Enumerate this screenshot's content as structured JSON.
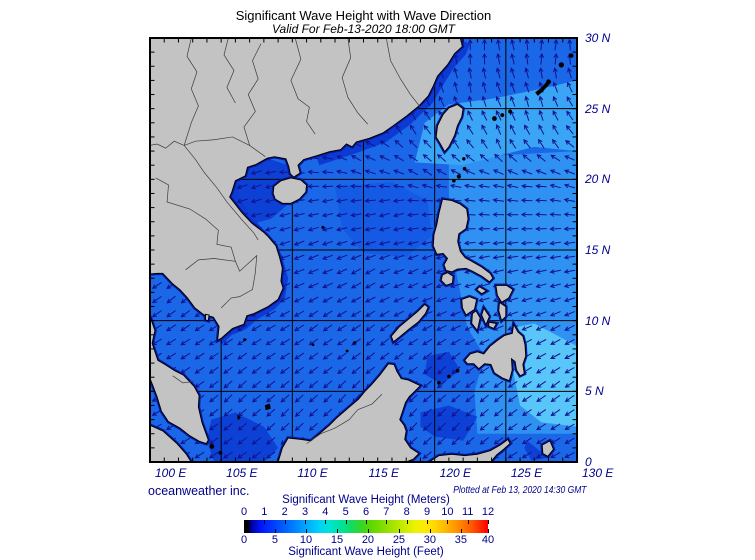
{
  "header": {
    "title": "Significant Wave Height with Wave Direction",
    "subtitle": "Valid For Feb-13-2020 18:00 GMT"
  },
  "footer": {
    "credit": "oceanweather inc.",
    "plotted": "Plotted at Feb 13, 2020 14:30 GMT"
  },
  "axes": {
    "lon_range": [
      100,
      130
    ],
    "lat_range": [
      0,
      30
    ],
    "grid_step_deg": 5,
    "tick_step_deg": 1,
    "lon_labels": [
      {
        "text": "100 E",
        "lon": 100
      },
      {
        "text": "105 E",
        "lon": 105
      },
      {
        "text": "110 E",
        "lon": 110
      },
      {
        "text": "115 E",
        "lon": 115
      },
      {
        "text": "120 E",
        "lon": 120
      },
      {
        "text": "125 E",
        "lon": 125
      },
      {
        "text": "130 E",
        "lon": 130
      }
    ],
    "lat_labels": [
      {
        "text": "30 N",
        "lat": 30
      },
      {
        "text": "25 N",
        "lat": 25
      },
      {
        "text": "20 N",
        "lat": 20
      },
      {
        "text": "15 N",
        "lat": 15
      },
      {
        "text": "10 N",
        "lat": 10
      },
      {
        "text": "5 N",
        "lat": 5
      },
      {
        "text": "0",
        "lat": 0
      }
    ]
  },
  "legend": {
    "title_meters": "Significant Wave Height (Meters)",
    "title_feet": "Significant Wave Height (Feet)",
    "meters_ticks": [
      0,
      1,
      2,
      3,
      4,
      5,
      6,
      7,
      8,
      9,
      10,
      11,
      12
    ],
    "feet_ticks": [
      0,
      5,
      10,
      15,
      20,
      25,
      30,
      35,
      40
    ],
    "gradient_stops": [
      [
        "0%",
        "#000000"
      ],
      [
        "1.5%",
        "#000000"
      ],
      [
        "3%",
        "#0000a0"
      ],
      [
        "7%",
        "#0016ff"
      ],
      [
        "12%",
        "#003cff"
      ],
      [
        "17%",
        "#0064ff"
      ],
      [
        "22%",
        "#008cff"
      ],
      [
        "27%",
        "#00b4ff"
      ],
      [
        "31%",
        "#00d2f8"
      ],
      [
        "35%",
        "#00e4d2"
      ],
      [
        "40%",
        "#00e29b"
      ],
      [
        "44%",
        "#12dc60"
      ],
      [
        "48%",
        "#35d52c"
      ],
      [
        "52%",
        "#5cd800"
      ],
      [
        "57%",
        "#84de00"
      ],
      [
        "62%",
        "#abe600"
      ],
      [
        "66%",
        "#cdec00"
      ],
      [
        "70%",
        "#ecf200"
      ],
      [
        "74%",
        "#fcec00"
      ],
      [
        "78%",
        "#ffd800"
      ],
      [
        "82%",
        "#ffbc00"
      ],
      [
        "86%",
        "#ff9c00"
      ],
      [
        "90%",
        "#ff7800"
      ],
      [
        "94%",
        "#ff5000"
      ],
      [
        "97%",
        "#ff2800"
      ],
      [
        "100%",
        "#ff0000"
      ]
    ]
  },
  "wave_field": {
    "grid_step_deg": 1,
    "arrow_color": "#12128e",
    "points": [
      {
        "lon": 123,
        "lat": 29,
        "dir": 85
      },
      {
        "lon": 128,
        "lat": 29,
        "dir": 78
      },
      {
        "lon": 119,
        "lat": 27.5,
        "dir": 95
      },
      {
        "lon": 122.5,
        "lat": 26,
        "dir": 95
      },
      {
        "lon": 127,
        "lat": 25,
        "dir": 100
      },
      {
        "lon": 118,
        "lat": 24,
        "dir": 115
      },
      {
        "lon": 121,
        "lat": 23,
        "dir": 115
      },
      {
        "lon": 124.5,
        "lat": 23,
        "dir": 108
      },
      {
        "lon": 128,
        "lat": 23,
        "dir": 115
      },
      {
        "lon": 114.5,
        "lat": 21.5,
        "dir": 150
      },
      {
        "lon": 110.5,
        "lat": 20.5,
        "dir": 170
      },
      {
        "lon": 119.5,
        "lat": 21,
        "dir": 140
      },
      {
        "lon": 107.5,
        "lat": 19.5,
        "dir": 200
      },
      {
        "lon": 109.5,
        "lat": 17.5,
        "dir": 195
      },
      {
        "lon": 113,
        "lat": 18,
        "dir": 195
      },
      {
        "lon": 117,
        "lat": 17.5,
        "dir": 200
      },
      {
        "lon": 120.5,
        "lat": 18.5,
        "dir": 185
      },
      {
        "lon": 123.5,
        "lat": 19,
        "dir": 175
      },
      {
        "lon": 127,
        "lat": 19,
        "dir": 180
      },
      {
        "lon": 129.5,
        "lat": 21,
        "dir": 160
      },
      {
        "lon": 111,
        "lat": 15,
        "dir": 205
      },
      {
        "lon": 115,
        "lat": 13,
        "dir": 212
      },
      {
        "lon": 119,
        "lat": 13.5,
        "dir": 207
      },
      {
        "lon": 123.5,
        "lat": 13,
        "dir": 196
      },
      {
        "lon": 127,
        "lat": 12,
        "dir": 198
      },
      {
        "lon": 102,
        "lat": 11.5,
        "dir": 220
      },
      {
        "lon": 104.5,
        "lat": 8.5,
        "dir": 215
      },
      {
        "lon": 100.8,
        "lat": 6.5,
        "dir": 212
      },
      {
        "lon": 112,
        "lat": 9.5,
        "dir": 217
      },
      {
        "lon": 116,
        "lat": 8.5,
        "dir": 222
      },
      {
        "lon": 106,
        "lat": 4.5,
        "dir": 225
      },
      {
        "lon": 110,
        "lat": 3.5,
        "dir": 226
      },
      {
        "lon": 114,
        "lat": 4.5,
        "dir": 230
      },
      {
        "lon": 118,
        "lat": 3,
        "dir": 229
      },
      {
        "lon": 121.5,
        "lat": 2.5,
        "dir": 228
      },
      {
        "lon": 124,
        "lat": 4,
        "dir": 222
      },
      {
        "lon": 120.5,
        "lat": 6.5,
        "dir": 225
      },
      {
        "lon": 126,
        "lat": 7,
        "dir": 213
      },
      {
        "lon": 128.5,
        "lat": 5,
        "dir": 218
      },
      {
        "lon": 129,
        "lat": 9,
        "dir": 210
      },
      {
        "lon": 125,
        "lat": 16,
        "dir": 188
      },
      {
        "lon": 128.5,
        "lat": 15,
        "dir": 190
      }
    ]
  },
  "colors": {
    "sea_base": "#1a67e8",
    "sea_phil": "#2f92f2",
    "sea_taiwan": "#3aa4f5",
    "sea_lightest": "#58c6f8",
    "sea_dark": "#0d41d6",
    "sea_west_luzon": "#145ae4",
    "coastal_band": "#0c3bd4",
    "nearshore": "#0719a0",
    "land": "#c3c3c3",
    "coastline": "#000000",
    "grid": "#000000",
    "text_navy": "#00008b"
  }
}
